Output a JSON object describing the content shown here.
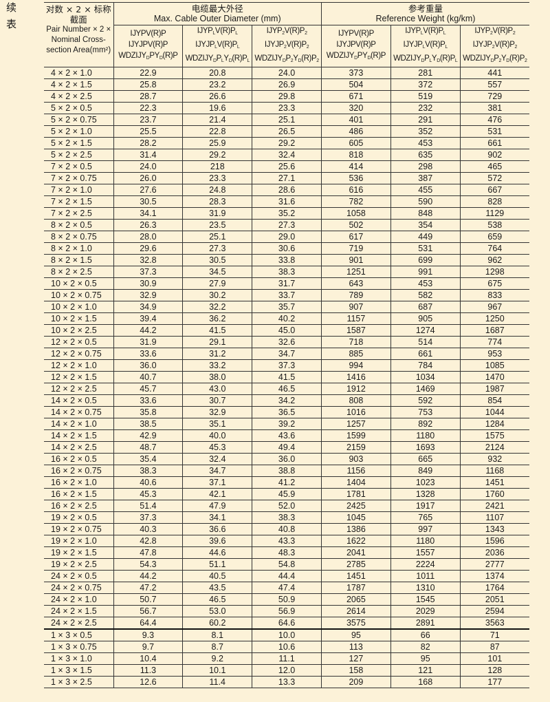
{
  "side_label": [
    "续",
    "表"
  ],
  "header": {
    "corner": {
      "cn_line1": "对数 × 2 × 标称",
      "cn_line2": "截面",
      "en_lines": [
        "Pair Number × 2 ×",
        "Nominal Cross-",
        "section Area(mm²)"
      ]
    },
    "group_diameter": {
      "cn": "电缆最大外径",
      "en": "Max. Cable Outer Diameter (mm)"
    },
    "group_weight": {
      "cn": "参考重量",
      "en": "Reference Weight  (kg/km)"
    },
    "models": [
      [
        [
          [
            "IJYPV(R)P",
            ""
          ]
        ],
        [
          [
            "IJYJPV(R)P",
            ""
          ]
        ],
        [
          [
            "WDZIJY",
            ""
          ],
          [
            "D",
            "sub"
          ],
          [
            "PY",
            ""
          ],
          [
            "D",
            "sub"
          ],
          [
            "(R)P",
            ""
          ]
        ]
      ],
      [
        [
          [
            "IJYP",
            ""
          ],
          [
            "L",
            "sub"
          ],
          [
            "V(R)P",
            ""
          ],
          [
            "L",
            "sub"
          ]
        ],
        [
          [
            "IJYJP",
            ""
          ],
          [
            "L",
            "sub"
          ],
          [
            "V(R)P",
            ""
          ],
          [
            "L",
            "sub"
          ]
        ],
        [
          [
            "WDZIJY",
            ""
          ],
          [
            "D",
            "sub"
          ],
          [
            "P",
            ""
          ],
          [
            "L",
            "sub"
          ],
          [
            "Y",
            ""
          ],
          [
            "D",
            "sub"
          ],
          [
            "(R)P",
            ""
          ],
          [
            "L",
            "sub"
          ]
        ]
      ],
      [
        [
          [
            "IJYP",
            ""
          ],
          [
            "2",
            "sub"
          ],
          [
            "V(R)P",
            ""
          ],
          [
            "2",
            "sub"
          ]
        ],
        [
          [
            "IJYJP",
            ""
          ],
          [
            "2",
            "sub"
          ],
          [
            "V(R)P",
            ""
          ],
          [
            "2",
            "sub"
          ]
        ],
        [
          [
            "WDZIJY",
            ""
          ],
          [
            "D",
            "sub"
          ],
          [
            "P",
            ""
          ],
          [
            "2",
            "sub"
          ],
          [
            "Y",
            ""
          ],
          [
            "D",
            "sub"
          ],
          [
            "(R)P",
            ""
          ],
          [
            "2",
            "sub"
          ]
        ]
      ]
    ]
  },
  "rows": [
    [
      "4 × 2 × 1.0",
      "22.9",
      "20.8",
      "24.0",
      "373",
      "281",
      "441"
    ],
    [
      "4 × 2 × 1.5",
      "25.8",
      "23.2",
      "26.9",
      "504",
      "372",
      "557"
    ],
    [
      "4 × 2 × 2.5",
      "28.7",
      "26.6",
      "29.8",
      "671",
      "519",
      "729"
    ],
    [
      "5 × 2 × 0.5",
      "22.3",
      "19.6",
      "23.3",
      "320",
      "232",
      "381"
    ],
    [
      "5 × 2 × 0.75",
      "23.7",
      "21.4",
      "25.1",
      "401",
      "291",
      "476"
    ],
    [
      "5 × 2 × 1.0",
      "25.5",
      "22.8",
      "26.5",
      "486",
      "352",
      "531"
    ],
    [
      "5 × 2 × 1.5",
      "28.2",
      "25.9",
      "29.2",
      "605",
      "453",
      "661"
    ],
    [
      "5 × 2 × 2.5",
      "31.4",
      "29.2",
      "32.4",
      "818",
      "635",
      "902"
    ],
    [
      "7 × 2 × 0.5",
      "24.0",
      "218",
      "25.6",
      "414",
      "298",
      "465"
    ],
    [
      "7 × 2 × 0.75",
      "26.0",
      "23.3",
      "27.1",
      "536",
      "387",
      "572"
    ],
    [
      "7 × 2 × 1.0",
      "27.6",
      "24.8",
      "28.6",
      "616",
      "455",
      "667"
    ],
    [
      "7 × 2 × 1.5",
      "30.5",
      "28.3",
      "31.6",
      "782",
      "590",
      "828"
    ],
    [
      "7 × 2 × 2.5",
      "34.1",
      "31.9",
      "35.2",
      "1058",
      "848",
      "1129"
    ],
    [
      "8 × 2 × 0.5",
      "26.3",
      "23.5",
      "27.3",
      "502",
      "354",
      "538"
    ],
    [
      "8 × 2 × 0.75",
      "28.0",
      "25.1",
      "29.0",
      "617",
      "449",
      "659"
    ],
    [
      "8 × 2 × 1.0",
      "29.6",
      "27.3",
      "30.6",
      "719",
      "531",
      "764"
    ],
    [
      "8 × 2 × 1.5",
      "32.8",
      "30.5",
      "33.8",
      "901",
      "699",
      "962"
    ],
    [
      "8 × 2 × 2.5",
      "37.3",
      "34.5",
      "38.3",
      "1251",
      "991",
      "1298"
    ],
    [
      "10 × 2 × 0.5",
      "30.9",
      "27.9",
      "31.7",
      "643",
      "453",
      "675"
    ],
    [
      "10 × 2 × 0.75",
      "32.9",
      "30.2",
      "33.7",
      "789",
      "582",
      "833"
    ],
    [
      "10 × 2 × 1.0",
      "34.9",
      "32.2",
      "35.7",
      "907",
      "687",
      "967"
    ],
    [
      "10 × 2 × 1.5",
      "39.4",
      "36.2",
      "40.2",
      "1157",
      "905",
      "1250"
    ],
    [
      "10 × 2 × 2.5",
      "44.2",
      "41.5",
      "45.0",
      "1587",
      "1274",
      "1687"
    ],
    [
      "12 × 2 × 0.5",
      "31.9",
      "29.1",
      "32.6",
      "718",
      "514",
      "774"
    ],
    [
      "12 × 2 × 0.75",
      "33.6",
      "31.2",
      "34.7",
      "885",
      "661",
      "953"
    ],
    [
      "12 × 2 × 1.0",
      "36.0",
      "33.2",
      "37.3",
      "994",
      "784",
      "1085"
    ],
    [
      "12 × 2 × 1.5",
      "40.7",
      "38.0",
      "41.5",
      "1416",
      "1034",
      "1470"
    ],
    [
      "12 × 2 × 2.5",
      "45.7",
      "43.0",
      "46.5",
      "1912",
      "1469",
      "1987"
    ],
    [
      "14 × 2 × 0.5",
      "33.6",
      "30.7",
      "34.2",
      "808",
      "592",
      "854"
    ],
    [
      "14 × 2 × 0.75",
      "35.8",
      "32.9",
      "36.5",
      "1016",
      "753",
      "1044"
    ],
    [
      "14 × 2 × 1.0",
      "38.5",
      "35.1",
      "39.2",
      "1257",
      "892",
      "1284"
    ],
    [
      "14 × 2 × 1.5",
      "42.9",
      "40.0",
      "43.6",
      "1599",
      "1180",
      "1575"
    ],
    [
      "14 × 2 × 2.5",
      "48.7",
      "45.3",
      "49.4",
      "2159",
      "1693",
      "2124"
    ],
    [
      "16 × 2 × 0.5",
      "35.4",
      "32.4",
      "36.0",
      "903",
      "665",
      "932"
    ],
    [
      "16 × 2 × 0.75",
      "38.3",
      "34.7",
      "38.8",
      "1156",
      "849",
      "1168"
    ],
    [
      "16 × 2 × 1.0",
      "40.6",
      "37.1",
      "41.2",
      "1404",
      "1023",
      "1451"
    ],
    [
      "16 × 2 × 1.5",
      "45.3",
      "42.1",
      "45.9",
      "1781",
      "1328",
      "1760"
    ],
    [
      "16 × 2 × 2.5",
      "51.4",
      "47.9",
      "52.0",
      "2425",
      "1917",
      "2421"
    ],
    [
      "19 × 2 × 0.5",
      "37.3",
      "34.1",
      "38.3",
      "1045",
      "765",
      "1107"
    ],
    [
      "19 × 2 × 0.75",
      "40.3",
      "36.6",
      "40.8",
      "1386",
      "997",
      "1343"
    ],
    [
      "19 × 2 × 1.0",
      "42.8",
      "39.6",
      "43.3",
      "1622",
      "1180",
      "1596"
    ],
    [
      "19 × 2 × 1.5",
      "47.8",
      "44.6",
      "48.3",
      "2041",
      "1557",
      "2036"
    ],
    [
      "19 × 2 × 2.5",
      "54.3",
      "51.1",
      "54.8",
      "2785",
      "2224",
      "2777"
    ],
    [
      "24 × 2 × 0.5",
      "44.2",
      "40.5",
      "44.4",
      "1451",
      "1011",
      "1374"
    ],
    [
      "24 × 2 × 0.75",
      "47.2",
      "43.5",
      "47.4",
      "1787",
      "1310",
      "1764"
    ],
    [
      "24 × 2 × 1.0",
      "50.7",
      "46.5",
      "50.9",
      "2065",
      "1545",
      "2051"
    ],
    [
      "24 × 2 × 1.5",
      "56.7",
      "53.0",
      "56.9",
      "2614",
      "2029",
      "2594"
    ],
    [
      "24 × 2 × 2.5",
      "64.4",
      "60.2",
      "64.6",
      "3575",
      "2891",
      "3563"
    ],
    [
      "1 × 3 × 0.5",
      "9.3",
      "8.1",
      "10.0",
      "95",
      "66",
      "71"
    ],
    [
      "1 × 3 × 0.75",
      "9.7",
      "8.7",
      "10.6",
      "113",
      "82",
      "87"
    ],
    [
      "1 × 3 × 1.0",
      "10.4",
      "9.2",
      "11.1",
      "127",
      "95",
      "101"
    ],
    [
      "1 × 3 × 1.5",
      "11.3",
      "10.1",
      "12.0",
      "158",
      "121",
      "128"
    ],
    [
      "1 × 3 × 2.5",
      "12.6",
      "11.4",
      "13.3",
      "209",
      "168",
      "177"
    ]
  ]
}
